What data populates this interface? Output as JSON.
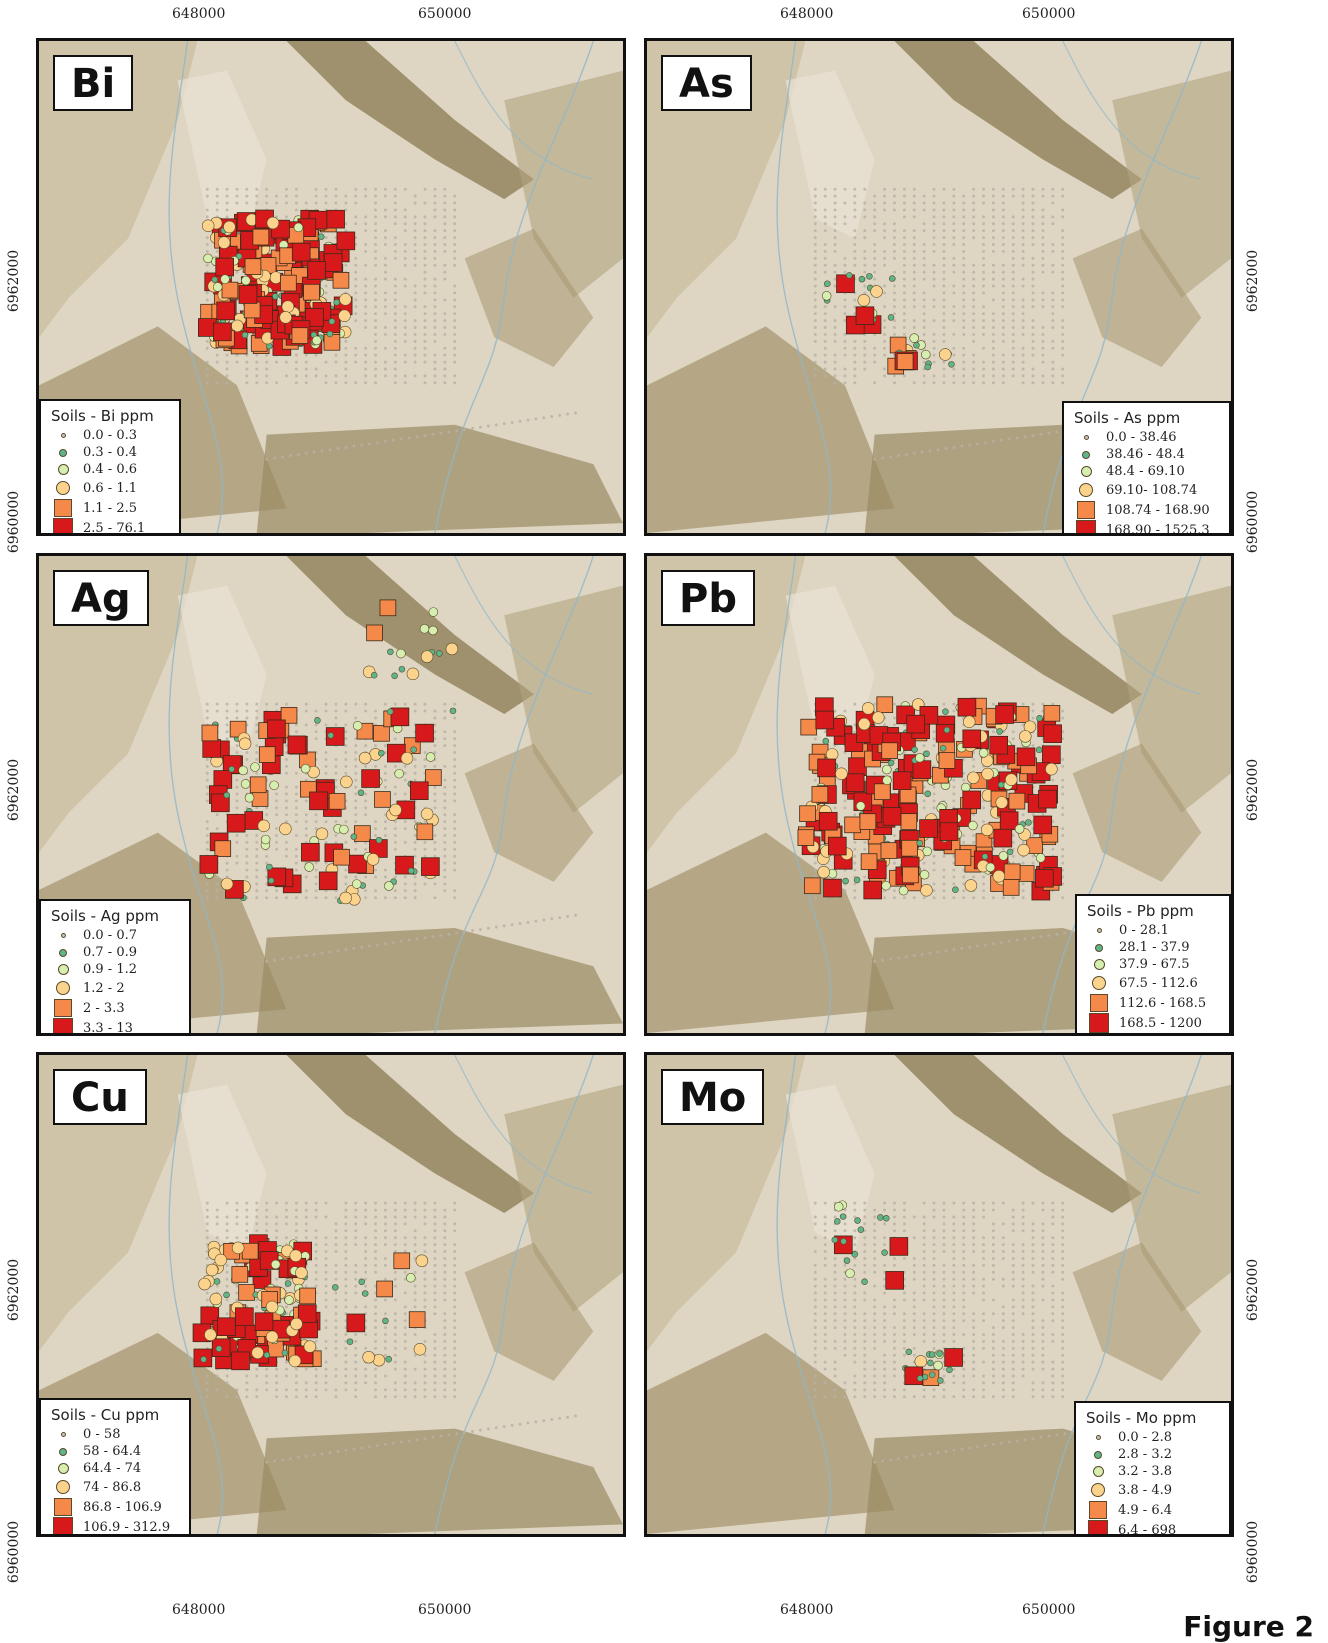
{
  "axes": {
    "x_ticks": [
      "648000",
      "650000"
    ],
    "y_ticks": [
      "6962000",
      "6960000"
    ]
  },
  "figure_label": "Figure 2",
  "colors": {
    "class0": "#c9c5bd",
    "class1": "#5fb58a",
    "class2": "#d6efb0",
    "class3": "#fbd38d",
    "class4": "#f4894a",
    "class5": "#d7191c"
  },
  "panels": [
    {
      "element": "Bi",
      "legend_title": "Soils - Bi ppm",
      "classes": [
        "0.0 - 0.3",
        "0.3 - 0.4",
        "0.4 - 0.6",
        "0.6 - 1.1",
        "1.1 - 2.5",
        "2.5 - 76.1"
      ],
      "legend_position": "bottom-left"
    },
    {
      "element": "As",
      "legend_title": "Soils - As ppm",
      "classes": [
        "0.0 - 38.46",
        "38.46 - 48.4",
        "48.4 - 69.10",
        "69.10- 108.74",
        "108.74 - 168.90",
        "168.90 - 1525.3"
      ],
      "legend_position": "bottom-right"
    },
    {
      "element": "Ag",
      "legend_title": "Soils - Ag ppm",
      "classes": [
        "0.0 - 0.7",
        "0.7 - 0.9",
        "0.9 - 1.2",
        "1.2 - 2",
        "2 - 3.3",
        "3.3 - 13"
      ],
      "legend_position": "bottom-left"
    },
    {
      "element": "Pb",
      "legend_title": "Soils - Pb ppm",
      "classes": [
        "0 - 28.1",
        "28.1 - 37.9",
        "37.9 - 67.5",
        "67.5 - 112.6",
        "112.6 - 168.5",
        "168.5 - 1200"
      ],
      "legend_position": "bottom-right"
    },
    {
      "element": "Cu",
      "legend_title": "Soils - Cu ppm",
      "classes": [
        "0 - 58",
        "58 - 64.4",
        "64.4 - 74",
        "74 - 86.8",
        "86.8 - 106.9",
        "106.9 - 312.9"
      ],
      "legend_position": "bottom-left"
    },
    {
      "element": "Mo",
      "legend_title": "Soils - Mo ppm",
      "classes": [
        "0.0 - 2.8",
        "2.8 - 3.2",
        "3.2 - 3.8",
        "3.8 - 4.9",
        "4.9 - 6.4",
        "6.4 - 698"
      ],
      "legend_position": "bottom-right"
    }
  ]
}
